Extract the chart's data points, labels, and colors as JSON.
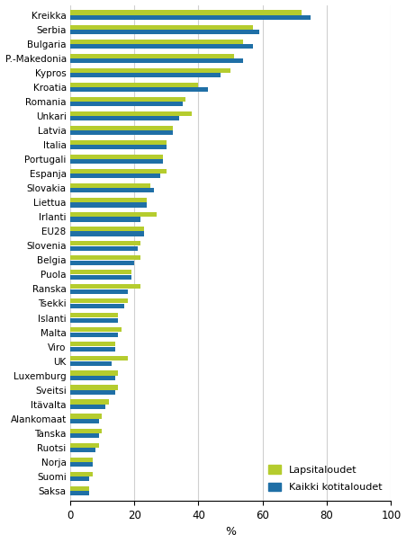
{
  "countries": [
    "Kreikka",
    "Serbia",
    "Bulgaria",
    "P.-Makedonia",
    "Kypros",
    "Kroatia",
    "Romania",
    "Unkari",
    "Latvia",
    "Italia",
    "Portugali",
    "Espanja",
    "Slovakia",
    "Liettua",
    "Irlanti",
    "EU28",
    "Slovenia",
    "Belgia",
    "Puola",
    "Ranska",
    "Tsekki",
    "Islanti",
    "Malta",
    "Viro",
    "UK",
    "Luxemburg",
    "Sveitsi",
    "Itävalta",
    "Alankomaat",
    "Tanska",
    "Ruotsi",
    "Norja",
    "Suomi",
    "Saksa"
  ],
  "lapsitaloudet": [
    72,
    57,
    54,
    51,
    50,
    40,
    36,
    38,
    32,
    30,
    29,
    30,
    25,
    24,
    27,
    23,
    22,
    22,
    19,
    22,
    18,
    15,
    16,
    14,
    18,
    15,
    15,
    12,
    10,
    10,
    9,
    7,
    7,
    6
  ],
  "kaikki_kotitaloudet": [
    75,
    59,
    57,
    54,
    47,
    43,
    35,
    34,
    32,
    30,
    29,
    28,
    26,
    24,
    22,
    23,
    21,
    20,
    19,
    18,
    17,
    15,
    15,
    14,
    13,
    14,
    14,
    11,
    9,
    9,
    8,
    7,
    6,
    6
  ],
  "color_lapsitaloudet": "#b5cc2e",
  "color_kaikki": "#1f6fa6",
  "xlabel": "%",
  "xlim": [
    0,
    100
  ],
  "xticks": [
    0,
    20,
    40,
    60,
    80,
    100
  ],
  "legend_lapsitaloudet": "Lapsitaloudet",
  "legend_kaikki": "Kaikki kotitaloudet",
  "background_color": "#ffffff",
  "grid_color": "#d0d0d0"
}
